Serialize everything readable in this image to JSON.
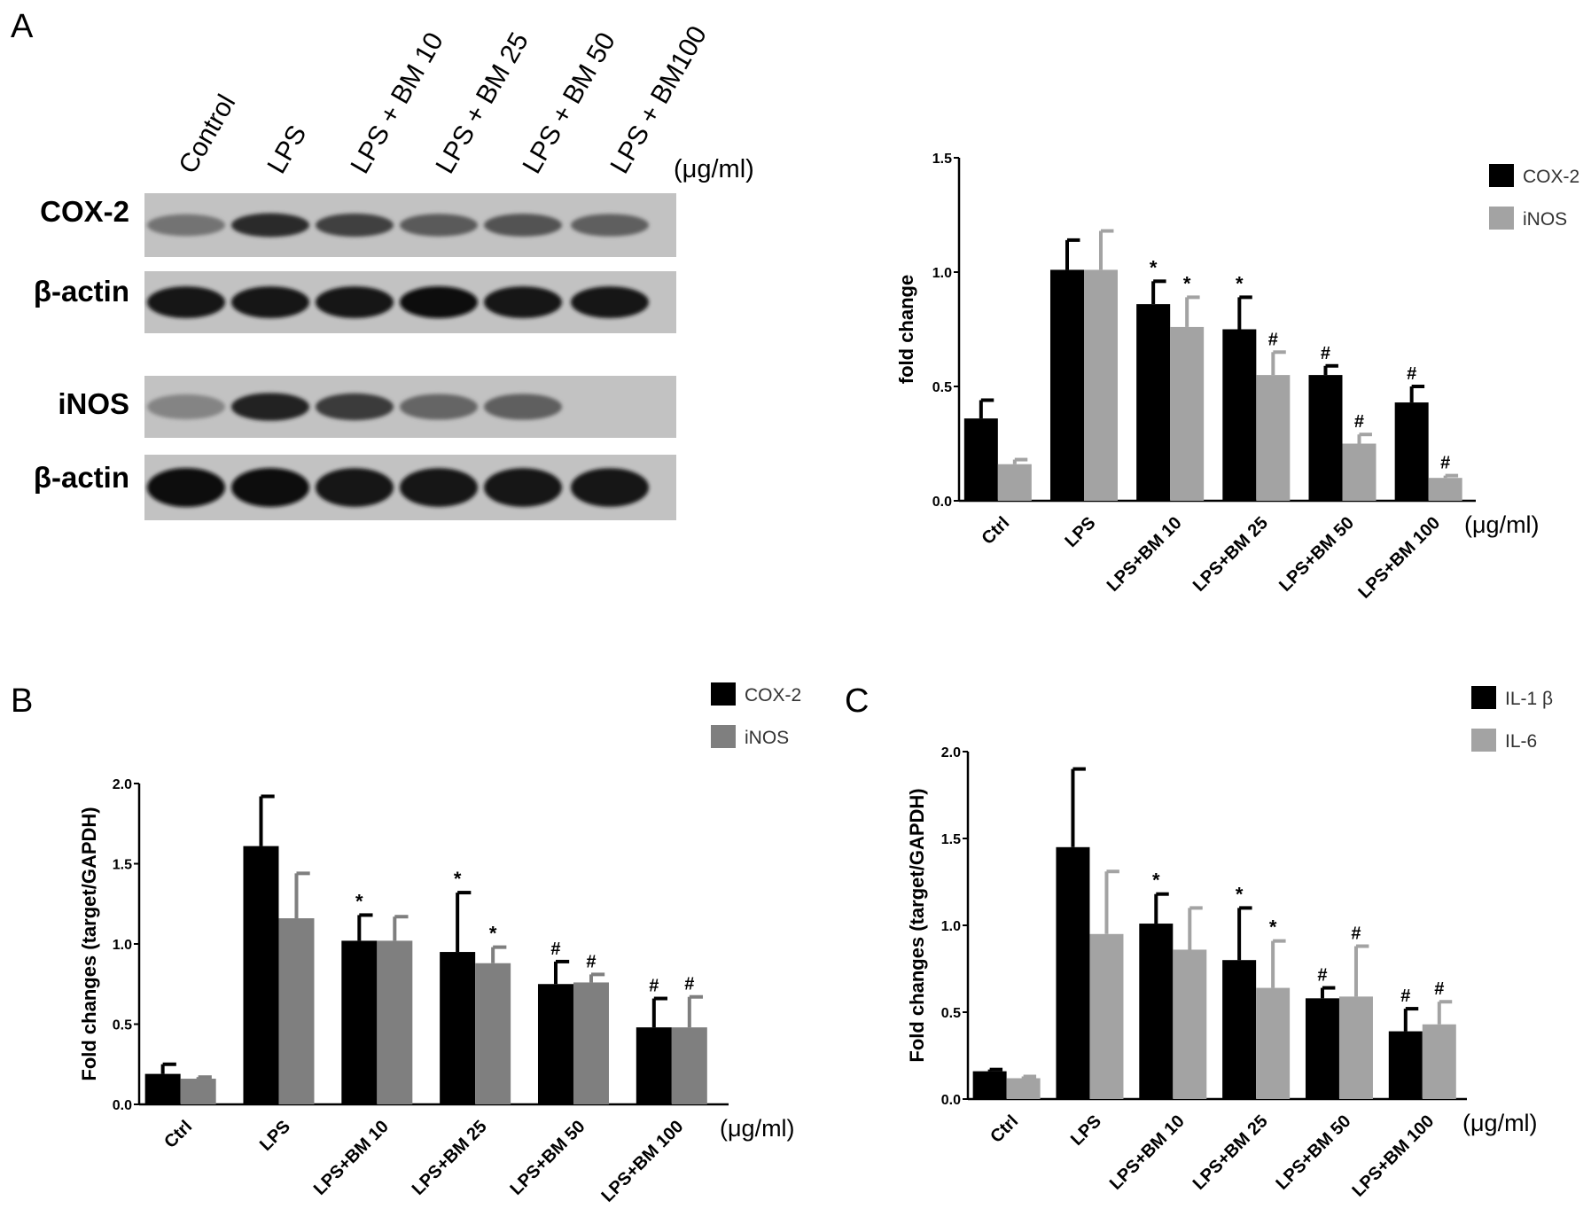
{
  "panel_labels": [
    "A",
    "B",
    "C"
  ],
  "western_blot": {
    "lanes": [
      "Control",
      "LPS",
      "LPS + BM 10",
      "LPS + BM 25",
      "LPS + BM 50",
      "LPS + BM100"
    ],
    "unit": "(μg/ml)",
    "rows": [
      {
        "label": "COX-2",
        "intensity": [
          0.45,
          0.82,
          0.72,
          0.58,
          0.62,
          0.56
        ]
      },
      {
        "label": "β-actin",
        "intensity": [
          0.96,
          0.96,
          0.96,
          0.98,
          0.94,
          0.94
        ]
      },
      {
        "label": "iNOS",
        "intensity": [
          0.36,
          0.88,
          0.74,
          0.52,
          0.56,
          0.0
        ]
      },
      {
        "label": "β-actin",
        "intensity": [
          1.0,
          0.98,
          0.94,
          0.95,
          0.95,
          0.92
        ]
      }
    ]
  },
  "chart_data": [
    {
      "panel": "A",
      "type": "bar",
      "categories": [
        "Ctrl",
        "LPS",
        "LPS+BM 10",
        "LPS+BM 25",
        "LPS+BM 50",
        "LPS+BM 100"
      ],
      "unit_label": "(μg/ml)",
      "ylabel": "fold change",
      "ylim": [
        0,
        1.5
      ],
      "yticks": [
        "0.0",
        "0.5",
        "1.0",
        "1.5"
      ],
      "legend_position": "top-right",
      "series": [
        {
          "name": "COX-2",
          "color": "#000000",
          "values": [
            0.36,
            1.01,
            0.86,
            0.75,
            0.55,
            0.43
          ],
          "errors": [
            0.08,
            0.13,
            0.1,
            0.14,
            0.04,
            0.07
          ],
          "marks": [
            "",
            "",
            "*",
            "*",
            "#",
            "#"
          ]
        },
        {
          "name": "iNOS",
          "color": "#a3a3a3",
          "values": [
            0.16,
            1.01,
            0.76,
            0.55,
            0.25,
            0.1
          ],
          "errors": [
            0.02,
            0.17,
            0.13,
            0.1,
            0.04,
            0.01
          ],
          "marks": [
            "",
            "",
            "*",
            "#",
            "#",
            "#"
          ]
        }
      ]
    },
    {
      "panel": "B",
      "type": "bar",
      "categories": [
        "Ctrl",
        "LPS",
        "LPS+BM 10",
        "LPS+BM 25",
        "LPS+BM 50",
        "LPS+BM 100"
      ],
      "unit_label": "(μg/ml)",
      "ylabel": "Fold changes (target/GAPDH)",
      "ylim": [
        0,
        2.0
      ],
      "yticks": [
        "0.0",
        "0.5",
        "1.0",
        "1.5",
        "2.0"
      ],
      "legend_position": "top-right",
      "series": [
        {
          "name": "COX-2",
          "color": "#000000",
          "values": [
            0.19,
            1.61,
            1.02,
            0.95,
            0.75,
            0.48
          ],
          "errors": [
            0.06,
            0.31,
            0.16,
            0.37,
            0.14,
            0.18
          ],
          "marks": [
            "",
            "",
            "*",
            "*",
            "#",
            "#"
          ]
        },
        {
          "name": "iNOS",
          "color": "#7f7f7f",
          "values": [
            0.16,
            1.16,
            1.02,
            0.88,
            0.76,
            0.48
          ],
          "errors": [
            0.01,
            0.28,
            0.15,
            0.1,
            0.05,
            0.19
          ],
          "marks": [
            "",
            "",
            "",
            "*",
            "#",
            "#"
          ]
        }
      ]
    },
    {
      "panel": "C",
      "type": "bar",
      "categories": [
        "Ctrl",
        "LPS",
        "LPS+BM 10",
        "LPS+BM 25",
        "LPS+BM 50",
        "LPS+BM 100"
      ],
      "unit_label": "(μg/ml)",
      "ylabel": "Fold changes (target/GAPDH)",
      "ylim": [
        0,
        2.0
      ],
      "yticks": [
        "0.0",
        "0.5",
        "1.0",
        "1.5",
        "2.0"
      ],
      "legend_position": "top-right",
      "series": [
        {
          "name": "IL-1 β",
          "color": "#000000",
          "values": [
            0.16,
            1.45,
            1.01,
            0.8,
            0.58,
            0.39
          ],
          "errors": [
            0.01,
            0.45,
            0.17,
            0.3,
            0.06,
            0.13
          ],
          "marks": [
            "",
            "",
            "*",
            "*",
            "#",
            "#"
          ]
        },
        {
          "name": "IL-6",
          "color": "#a3a3a3",
          "values": [
            0.12,
            0.95,
            0.86,
            0.64,
            0.59,
            0.43
          ],
          "errors": [
            0.01,
            0.36,
            0.24,
            0.27,
            0.29,
            0.13
          ],
          "marks": [
            "",
            "",
            "",
            "*",
            "#",
            "#"
          ]
        }
      ]
    }
  ]
}
